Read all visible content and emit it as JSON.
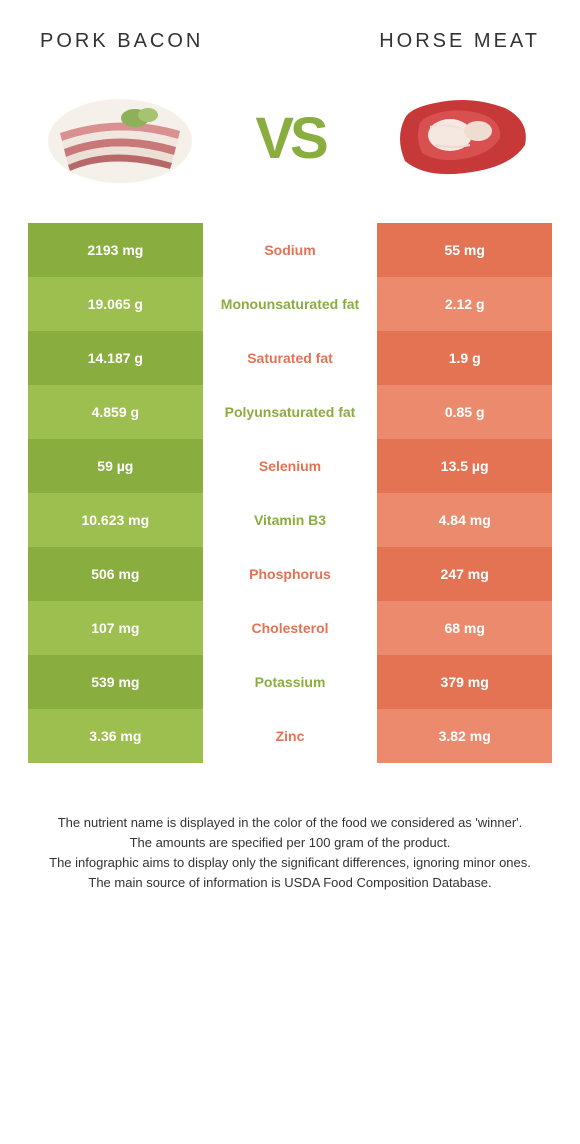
{
  "header": {
    "left_title": "PORK BACON",
    "right_title": "HORSE MEAT",
    "vs": "VS"
  },
  "colors": {
    "left_primary": "#8aad3f",
    "left_alt": "#9dbf4f",
    "right_primary": "#e47354",
    "right_alt": "#ec8a6e",
    "label_left": "#e47354",
    "label_right": "#8aad3f",
    "white": "#ffffff"
  },
  "rows": [
    {
      "left": "2193 mg",
      "label": "Sodium",
      "right": "55 mg",
      "winner": "left"
    },
    {
      "left": "19.065 g",
      "label": "Monounsaturated fat",
      "right": "2.12 g",
      "winner": "right"
    },
    {
      "left": "14.187 g",
      "label": "Saturated fat",
      "right": "1.9 g",
      "winner": "left"
    },
    {
      "left": "4.859 g",
      "label": "Polyunsaturated fat",
      "right": "0.85 g",
      "winner": "right"
    },
    {
      "left": "59 µg",
      "label": "Selenium",
      "right": "13.5 µg",
      "winner": "left"
    },
    {
      "left": "10.623 mg",
      "label": "Vitamin B3",
      "right": "4.84 mg",
      "winner": "right"
    },
    {
      "left": "506 mg",
      "label": "Phosphorus",
      "right": "247 mg",
      "winner": "left"
    },
    {
      "left": "107 mg",
      "label": "Cholesterol",
      "right": "68 mg",
      "winner": "left"
    },
    {
      "left": "539 mg",
      "label": "Potassium",
      "right": "379 mg",
      "winner": "right"
    },
    {
      "left": "3.36 mg",
      "label": "Zinc",
      "right": "3.82 mg",
      "winner": "left"
    }
  ],
  "footer": {
    "line1": "The nutrient name is displayed in the color of the food we considered as 'winner'.",
    "line2": "The amounts are specified per 100 gram of the product.",
    "line3": "The infographic aims to display only the significant differences, ignoring minor ones.",
    "line4": "The main source of information is USDA Food Composition Database."
  }
}
